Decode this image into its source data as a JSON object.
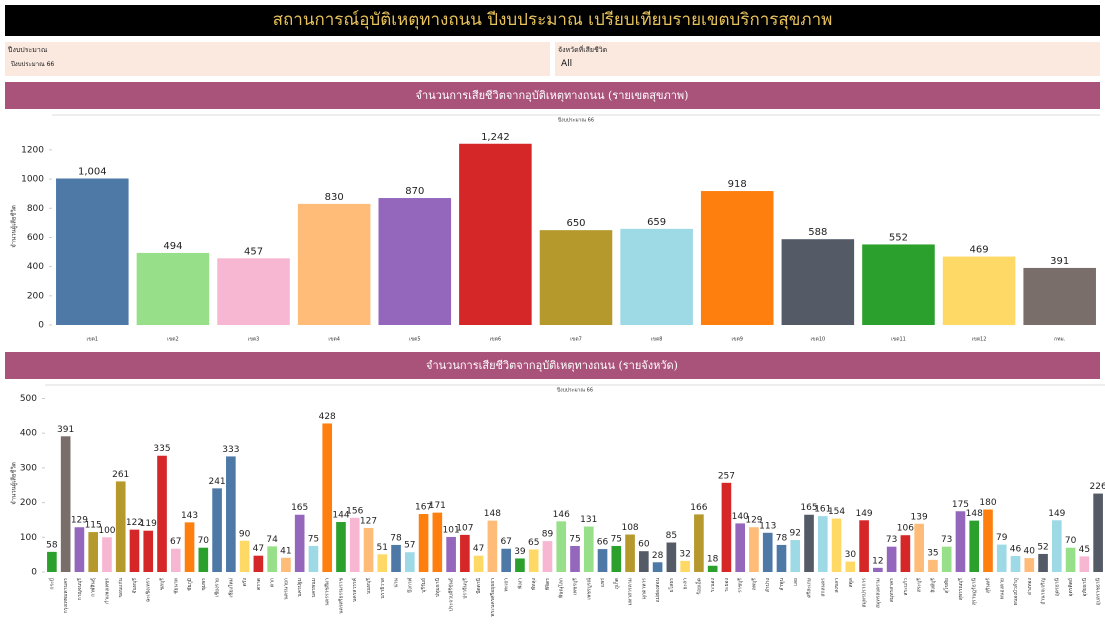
{
  "header": {
    "title": "สถานการณ์อุบัติเหตุทางถนน ปีงบประมาณ เปรียบเทียบรายเขตบริการสุขภาพ"
  },
  "filters": [
    {
      "label": "ปีงบประมาณ",
      "value": "ปีงบประมาณ 66"
    },
    {
      "label": "จังหวัดที่เสียชีวิต",
      "value": "All"
    }
  ],
  "chart_data": [
    {
      "type": "bar",
      "title": "จำนวนการเสียชีวิตจากอุบัติเหตุทางถนน (รายเขตสุขภาพ)",
      "subtitle": "ปีงบประมาณ 66",
      "y_label": "จำนวนผู้เสียชีวิต",
      "categories": [
        "เขต1",
        "เขต2",
        "เขต3",
        "เขต4",
        "เขต5",
        "เขต6",
        "เขต7",
        "เขต8",
        "เขต9",
        "เขต10",
        "เขต11",
        "เขต12",
        "กทม."
      ],
      "values": [
        1004,
        494,
        457,
        830,
        870,
        1242,
        650,
        659,
        918,
        588,
        552,
        469,
        391
      ],
      "value_labels": [
        "1,004",
        "494",
        "457",
        "830",
        "870",
        "1,242",
        "650",
        "659",
        "918",
        "588",
        "552",
        "469",
        "391"
      ],
      "colors": [
        "#4e79a7",
        "#98df8a",
        "#f7b6d2",
        "#ffbb78",
        "#9467bd",
        "#d62728",
        "#b5992d",
        "#9edae5",
        "#ff7f0e",
        "#555b66",
        "#2ca02c",
        "#ffd966",
        "#7a6e6a"
      ],
      "ylim": [
        0,
        1350
      ],
      "yticks": [
        0,
        200,
        400,
        600,
        800,
        1000,
        1200
      ]
    },
    {
      "type": "bar",
      "title": "จำนวนการเสียชีวิตจากอุบัติเหตุทางถนน (รายจังหวัด)",
      "subtitle": "ปีงบประมาณ 66",
      "y_label": "จำนวนผู้เสียชีวิต",
      "categories": [
        "กระบี่",
        "กรุงเทพมหานคร",
        "กาญจนบุรี",
        "กาฬสินธุ์",
        "กำแพงเพชร",
        "ขอนแก่น",
        "จันทบุรี",
        "ฉะเชิงเทรา",
        "ชลบุรี",
        "ชัยนาท",
        "ชัยภูมิ",
        "ชุมพร",
        "เชียงราย",
        "เชียงใหม่",
        "ตรัง",
        "ตราด",
        "ตาก",
        "นครนายก",
        "นครปฐม",
        "นครพนม",
        "นครราชสีมา",
        "นครศรีธรรมราช",
        "นครสวรรค์",
        "นนทบุรี",
        "นราธิวาส",
        "น่าน",
        "บึงกาฬ",
        "บุรีรัมย์",
        "ปทุมธานี",
        "ประจวบคีรีขันธ์",
        "ปราจีนบุรี",
        "ปัตตานี",
        "พระนครศรีอยุธยา",
        "พะเยา",
        "พังงา",
        "พัทลุง",
        "พิจิตร",
        "พิษณุโลก",
        "เพชรบุรี",
        "เพชรบูรณ์",
        "แพร่",
        "ภูเก็ต",
        "มหาสารคาม",
        "มุกดาหาร",
        "แม่ฮ่องสอน",
        "ยโสธร",
        "ยะลา",
        "ร้อยเอ็ด",
        "ระนอง",
        "ระยอง",
        "ราชบุรี",
        "ลพบุรี",
        "ลำปาง",
        "ลำพูน",
        "เลย",
        "ศรีสะเกษ",
        "สกลนคร",
        "สงขลา",
        "สตูล",
        "สมุทรปราการ",
        "สมุทรสงคราม",
        "สมุทรสาคร",
        "สระแก้ว",
        "สระบุรี",
        "สิงห์บุรี",
        "สุโขทัย",
        "สุพรรณบุรี",
        "สุราษฎร์ธานี",
        "สุรินทร์",
        "หนองคาย",
        "หนองบัวลำภู",
        "อ่างทอง",
        "อำนาจเจริญ",
        "อุดรธานี",
        "อุตรดิตถ์",
        "อุทัยธานี",
        "อุบลราชธานี"
      ],
      "values": [
        58,
        391,
        129,
        115,
        100,
        261,
        122,
        119,
        335,
        67,
        143,
        70,
        241,
        333,
        90,
        47,
        74,
        41,
        165,
        75,
        428,
        144,
        156,
        127,
        51,
        78,
        57,
        167,
        171,
        101,
        107,
        47,
        148,
        67,
        39,
        65,
        89,
        146,
        75,
        131,
        66,
        75,
        108,
        60,
        28,
        85,
        32,
        166,
        18,
        257,
        140,
        129,
        113,
        78,
        92,
        165,
        161,
        154,
        30,
        149,
        12,
        73,
        106,
        139,
        35,
        73,
        175,
        148,
        180,
        79,
        46,
        40,
        52,
        149,
        70,
        45,
        226
      ],
      "colors": [
        "#2ca02c",
        "#7a6e6a",
        "#9467bd",
        "#b5992d",
        "#f7b6d2",
        "#b5992d",
        "#d62728",
        "#d62728",
        "#d62728",
        "#f7b6d2",
        "#ff7f0e",
        "#2ca02c",
        "#4e79a7",
        "#4e79a7",
        "#ffd966",
        "#d62728",
        "#98df8a",
        "#ffbb78",
        "#9467bd",
        "#9edae5",
        "#ff7f0e",
        "#2ca02c",
        "#f7b6d2",
        "#ffbb78",
        "#ffd966",
        "#4e79a7",
        "#9edae5",
        "#ff7f0e",
        "#ff7f0e",
        "#9467bd",
        "#d62728",
        "#ffd966",
        "#ffbb78",
        "#4e79a7",
        "#2ca02c",
        "#ffd966",
        "#f7b6d2",
        "#98df8a",
        "#9467bd",
        "#98df8a",
        "#4e79a7",
        "#2ca02c",
        "#b5992d",
        "#555b66",
        "#4e79a7",
        "#555b66",
        "#ffd966",
        "#b5992d",
        "#2ca02c",
        "#d62728",
        "#9467bd",
        "#ffbb78",
        "#4e79a7",
        "#4e79a7",
        "#9edae5",
        "#555b66",
        "#9edae5",
        "#ffd966",
        "#ffd966",
        "#d62728",
        "#9467bd",
        "#9467bd",
        "#d62728",
        "#ffbb78",
        "#ffbb78",
        "#98df8a",
        "#9467bd",
        "#2ca02c",
        "#ff7f0e",
        "#9edae5",
        "#9edae5",
        "#ffbb78",
        "#555b66",
        "#9edae5",
        "#98df8a",
        "#f7b6d2",
        "#555b66"
      ],
      "ylim": [
        0,
        510
      ],
      "yticks": [
        0,
        100,
        200,
        300,
        400,
        500
      ]
    }
  ]
}
